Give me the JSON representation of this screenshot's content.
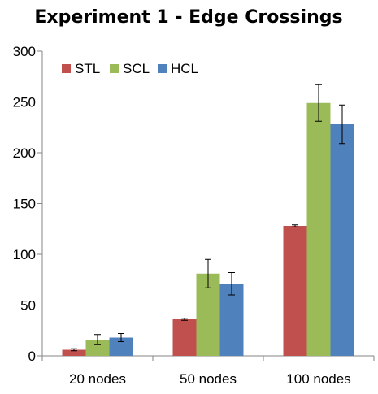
{
  "chart_data": {
    "type": "bar",
    "title": "Experiment 1 - Edge Crossings",
    "xlabel": "",
    "ylabel": "",
    "categories": [
      "20 nodes",
      "50 nodes",
      "100 nodes"
    ],
    "series": [
      {
        "name": "STL",
        "values": [
          6,
          36,
          128
        ],
        "errors": [
          1,
          1,
          1
        ],
        "color": "#c0504d"
      },
      {
        "name": "SCL",
        "values": [
          16,
          81,
          249
        ],
        "errors": [
          5,
          14,
          18
        ],
        "color": "#9bbb59"
      },
      {
        "name": "HCL",
        "values": [
          18,
          71,
          228
        ],
        "errors": [
          4,
          11,
          19
        ],
        "color": "#4f81bd"
      }
    ],
    "ylim": [
      0,
      300
    ],
    "yticks": [
      0,
      50,
      100,
      150,
      200,
      250,
      300
    ],
    "grid": false,
    "legend_position": "top-left"
  }
}
